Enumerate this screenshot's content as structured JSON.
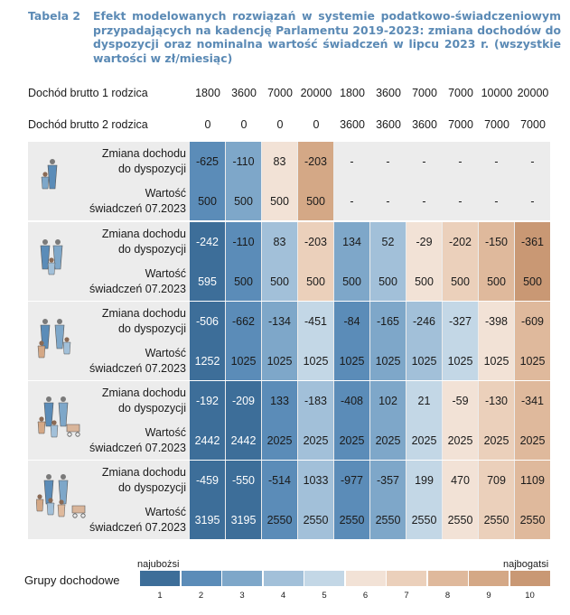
{
  "caption": {
    "label": "Tabela 2",
    "text": "Efekt modelowanych rozwiązań w systemie podatkowo-świadczeniowym przypadających na kadencję Parlamentu 2019-2023: zmiana dochodów do dyspozycji oraz nominalna wartość świadczeń w lipcu 2023 r. (wszystkie wartości w zł/miesiąc)"
  },
  "header": {
    "row1_label": "Dochód brutto 1 rodzica",
    "row1_values": [
      "1800",
      "3600",
      "7000",
      "20000",
      "1800",
      "3600",
      "7000",
      "7000",
      "10000",
      "20000"
    ],
    "row2_label": "Dochód brutto 2 rodzica",
    "row2_values": [
      "0",
      "0",
      "0",
      "0",
      "3600",
      "3600",
      "3600",
      "7000",
      "7000",
      "7000"
    ]
  },
  "row_labels": {
    "change_line1": "Zmiana dochodu",
    "change_line2": "do dyspozycji",
    "benefit_line1": "Wartość",
    "benefit_line2": "świadczeń 07.2023"
  },
  "groups": [
    {
      "icon": "single-parent-one-child-icon",
      "change": [
        "-625",
        "-110",
        "83",
        "-203",
        "-",
        "-",
        "-",
        "-",
        "-",
        "-"
      ],
      "change_grp": [
        2,
        3,
        6,
        9,
        0,
        0,
        0,
        0,
        0,
        0
      ],
      "benefit": [
        "500",
        "500",
        "500",
        "500",
        "-",
        "-",
        "-",
        "-",
        "-",
        "-"
      ],
      "benefit_grp": [
        2,
        3,
        6,
        9,
        0,
        0,
        0,
        0,
        0,
        0
      ]
    },
    {
      "icon": "couple-one-child-icon",
      "change": [
        "-242",
        "-110",
        "83",
        "-203",
        "134",
        "52",
        "-29",
        "-202",
        "-150",
        "-361"
      ],
      "change_grp": [
        1,
        2,
        4,
        7,
        3,
        4,
        6,
        7,
        8,
        10
      ],
      "benefit": [
        "595",
        "500",
        "500",
        "500",
        "500",
        "500",
        "500",
        "500",
        "500",
        "500"
      ],
      "benefit_grp": [
        1,
        2,
        4,
        7,
        3,
        4,
        6,
        7,
        8,
        10
      ]
    },
    {
      "icon": "couple-two-children-icon",
      "change": [
        "-506",
        "-662",
        "-134",
        "-451",
        "-84",
        "-165",
        "-246",
        "-327",
        "-398",
        "-609"
      ],
      "change_grp": [
        1,
        2,
        3,
        5,
        2,
        3,
        4,
        5,
        6,
        8
      ],
      "benefit": [
        "1252",
        "1025",
        "1025",
        "1025",
        "1025",
        "1025",
        "1025",
        "1025",
        "1025",
        "1025"
      ],
      "benefit_grp": [
        1,
        2,
        3,
        5,
        2,
        3,
        4,
        5,
        6,
        8
      ]
    },
    {
      "icon": "couple-three-children-icon",
      "change": [
        "-192",
        "-209",
        "133",
        "-183",
        "-408",
        "102",
        "21",
        "-59",
        "-130",
        "-341"
      ],
      "change_grp": [
        1,
        1,
        2,
        4,
        2,
        3,
        5,
        6,
        7,
        8
      ],
      "benefit": [
        "2442",
        "2442",
        "2025",
        "2025",
        "2025",
        "2025",
        "2025",
        "2025",
        "2025",
        "2025"
      ],
      "benefit_grp": [
        1,
        1,
        2,
        4,
        2,
        3,
        5,
        6,
        7,
        8
      ]
    },
    {
      "icon": "couple-four-children-icon",
      "change": [
        "-459",
        "-550",
        "-514",
        "1033",
        "-977",
        "-357",
        "199",
        "470",
        "709",
        "1109"
      ],
      "change_grp": [
        1,
        1,
        2,
        4,
        2,
        3,
        5,
        6,
        7,
        8
      ],
      "benefit": [
        "3195",
        "3195",
        "2550",
        "2550",
        "2550",
        "2550",
        "2550",
        "2550",
        "2550",
        "2550"
      ],
      "benefit_grp": [
        1,
        1,
        2,
        4,
        2,
        3,
        5,
        6,
        7,
        8
      ]
    }
  ],
  "legend": {
    "title": "Grupy dochodowe",
    "poorest": "najubożsi",
    "richest": "najbogatsi",
    "numbers": [
      "1",
      "2",
      "3",
      "4",
      "5",
      "6",
      "7",
      "8",
      "9",
      "10"
    ],
    "colors": [
      "#3d6e99",
      "#5b8cb8",
      "#7ea7c9",
      "#a2c0d9",
      "#c3d7e6",
      "#f2e2d6",
      "#ebd0bb",
      "#dfb99c",
      "#d4a886",
      "#c99874"
    ]
  }
}
